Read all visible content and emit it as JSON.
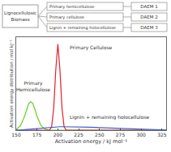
{
  "diagram": {
    "source": {
      "lines": [
        "Lignocellulosic",
        "Biomass"
      ]
    },
    "fractions": [
      "Primary hemicellulose",
      "Primary cellulose",
      "Lignin + remaining holocellulose"
    ],
    "models": [
      "DAEM 1",
      "DAEM 2",
      "DAEM 3"
    ]
  },
  "chart_data": {
    "type": "line",
    "x_label": "Activation energy / kJ mol⁻¹",
    "y_label": "Activation energy distribution / mol kJ⁻¹",
    "x": [
      150,
      155,
      160,
      162.5,
      165,
      167.5,
      170,
      172.5,
      175,
      180,
      185,
      190,
      192.5,
      195,
      197.5,
      200,
      202.5,
      205,
      207.5,
      210,
      215,
      220,
      230,
      240,
      250,
      260,
      270,
      280,
      290,
      300,
      310,
      320,
      330
    ],
    "series": [
      {
        "name": "Primary Hemicellulose",
        "color": "#66cc22",
        "values": [
          0.01,
          0.05,
          0.16,
          0.24,
          0.31,
          0.33,
          0.31,
          0.24,
          0.16,
          0.05,
          0.01,
          0,
          0,
          0,
          0,
          0,
          0,
          0,
          0,
          0,
          0,
          0,
          0,
          0,
          0,
          0,
          0,
          0,
          0,
          0,
          0,
          0,
          0
        ]
      },
      {
        "name": "Primary Cellulose",
        "color": "#e8202a",
        "values": [
          0,
          0,
          0,
          0,
          0,
          0,
          0,
          0,
          0,
          0,
          0,
          0,
          0.04,
          0.25,
          0.7,
          1.0,
          0.7,
          0.25,
          0.04,
          0,
          0,
          0,
          0,
          0,
          0,
          0,
          0,
          0,
          0,
          0,
          0,
          0,
          0
        ]
      },
      {
        "name": "Lignin + remaining holocellulose",
        "color": "#3b5bdb",
        "values": [
          0,
          0,
          0.005,
          0.008,
          0.01,
          0.013,
          0.016,
          0.02,
          0.023,
          0.028,
          0.032,
          0.035,
          0.036,
          0.037,
          0.038,
          0.039,
          0.04,
          0.04,
          0.04,
          0.04,
          0.04,
          0.039,
          0.037,
          0.034,
          0.03,
          0.026,
          0.022,
          0.018,
          0.014,
          0.01,
          0.007,
          0.004,
          0.002
        ]
      }
    ],
    "annotations": [
      {
        "lines": [
          "Primary",
          "Hemicellulose"
        ],
        "x": 170,
        "y": 0.42
      },
      {
        "lines": [
          "Primary Cellulose"
        ],
        "x": 240,
        "y": 0.9
      },
      {
        "lines": [
          "Lignin + remaining holocellulose"
        ],
        "x": 262,
        "y": 0.09
      }
    ],
    "xlim": [
      150,
      330
    ],
    "xticks": [
      150,
      175,
      200,
      225,
      250,
      275,
      300,
      325
    ],
    "ylim": [
      0,
      1.08
    ],
    "tick_labels": "x",
    "grid": false
  }
}
